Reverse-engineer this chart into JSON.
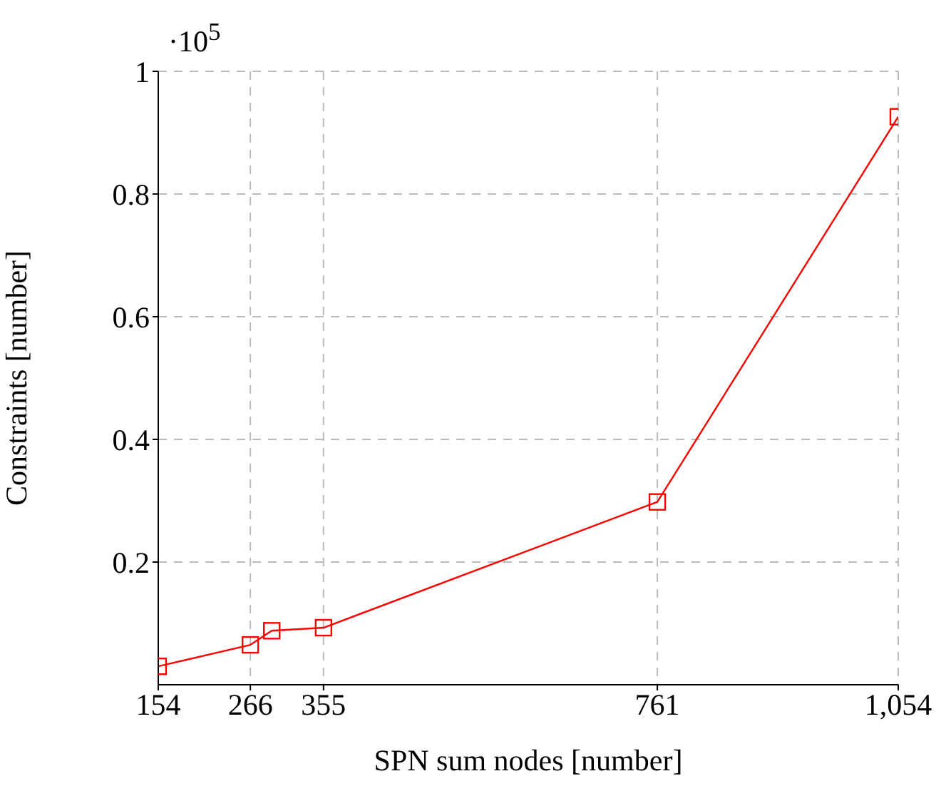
{
  "chart_data": {
    "type": "line",
    "xlabel": "SPN sum nodes [number]",
    "ylabel": "Constraints [number]",
    "x": [
      154,
      266,
      292,
      355,
      761,
      1054
    ],
    "series": [
      {
        "color": "#ff0000",
        "values": [
          0.03,
          0.065,
          0.088,
          0.093,
          0.298,
          0.926
        ]
      }
    ],
    "xlim": [
      154,
      1054
    ],
    "xticks": [
      154,
      266,
      355,
      761,
      {
        "value": 1054,
        "label": "1,054"
      }
    ],
    "ylim": [
      0,
      1
    ],
    "yticks": [
      0.2,
      0.4,
      0.6,
      0.8,
      1
    ],
    "grid": true,
    "marker": "square",
    "line_style": "solid",
    "annotations": [
      "·10$^{5}$"
    ]
  }
}
